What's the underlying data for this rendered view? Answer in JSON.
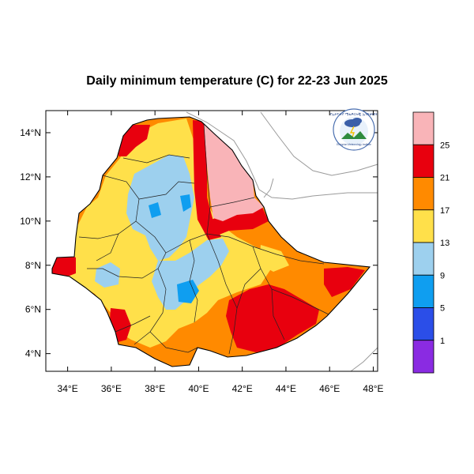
{
  "title": "Daily minimum temperature (C) for 22-23 Jun 2025",
  "logo": {
    "name": "ethiopian-meteorology-institute-logo",
    "text_top": "የኢትዮጵያ ሜቴዎሮሎጂ ኢንስቲትዩት",
    "text_bottom": "Ethiopian Meteorology Institute"
  },
  "axes": {
    "x_ticks": [
      "34°E",
      "36°E",
      "38°E",
      "40°E",
      "42°E",
      "44°E",
      "46°E",
      "48°E"
    ],
    "y_ticks": [
      "14°N",
      "12°N",
      "10°N",
      "8°N",
      "6°N",
      "4°N"
    ],
    "x_values": [
      34,
      36,
      38,
      40,
      42,
      44,
      46,
      48
    ],
    "y_values": [
      14,
      12,
      10,
      8,
      6,
      4
    ],
    "lon_range": [
      33,
      48.2
    ],
    "lat_range": [
      3.2,
      15
    ]
  },
  "colorbar": {
    "labels": [
      "25",
      "21",
      "17",
      "13",
      "9",
      "5",
      "1"
    ],
    "colors": [
      "#f9b4b8",
      "#e8000e",
      "#ff8a00",
      "#ffe04a",
      "#9dd0ee",
      "#0f9ef0",
      "#2b4ee8",
      "#8a2be2"
    ]
  }
}
